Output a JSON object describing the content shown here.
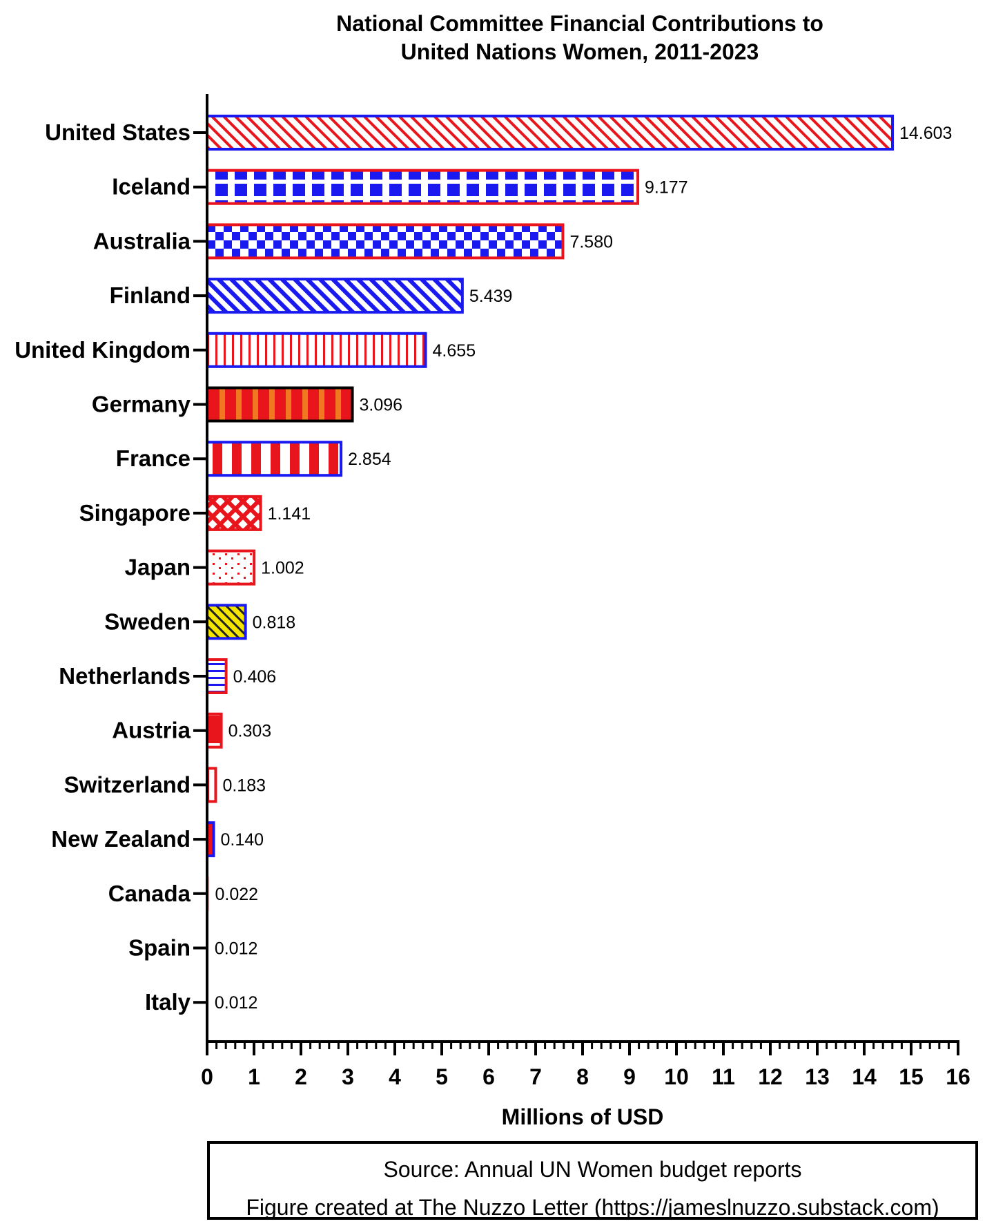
{
  "title_line1": "National Committee Financial Contributions to",
  "title_line2": "United Nations Women, 2011-2023",
  "source_line1": "Source: Annual UN Women budget reports",
  "source_line2": "Figure created at The Nuzzo Letter (https://jameslnuzzo.substack.com)",
  "chart_data": {
    "type": "bar",
    "orientation": "horizontal",
    "xlabel": "Millions of USD",
    "xlim": [
      0,
      16
    ],
    "xticks": [
      "0",
      "1",
      "2",
      "3",
      "4",
      "5",
      "6",
      "7",
      "8",
      "9",
      "10",
      "11",
      "12",
      "13",
      "14",
      "15",
      "16"
    ],
    "categories": [
      "United States",
      "Iceland",
      "Australia",
      "Finland",
      "United Kingdom",
      "Germany",
      "France",
      "Singapore",
      "Japan",
      "Sweden",
      "Netherlands",
      "Austria",
      "Switzerland",
      "New Zealand",
      "Canada",
      "Spain",
      "Italy"
    ],
    "values": [
      14.603,
      9.177,
      7.58,
      5.439,
      4.655,
      3.096,
      2.854,
      1.141,
      1.002,
      0.818,
      0.406,
      0.303,
      0.183,
      0.14,
      0.022,
      0.012,
      0.012
    ],
    "value_labels": [
      "14.603",
      "9.177",
      "7.580",
      "5.439",
      "4.655",
      "3.096",
      "2.854",
      "1.141",
      "1.002",
      "0.818",
      "0.406",
      "0.303",
      "0.183",
      "0.140",
      "0.022",
      "0.012",
      "0.012"
    ],
    "bar_styles": [
      {
        "pattern": "diagonal-stripes",
        "fill": "#e8161c",
        "border": "#1a1af0"
      },
      {
        "pattern": "square-rows",
        "fill": "#1a1af0",
        "border": "#e8161c"
      },
      {
        "pattern": "checker",
        "fill": "#1a1af0",
        "border": "#e8161c"
      },
      {
        "pattern": "diagonal-stripes",
        "fill": "#1a1af0",
        "border": "#1a1af0"
      },
      {
        "pattern": "vertical-stripes",
        "fill": "#e8161c",
        "border": "#1a1af0"
      },
      {
        "pattern": "vertical-stripes-on-color",
        "fill": "#e8161c",
        "accent": "#f07820",
        "border": "#000000"
      },
      {
        "pattern": "wide-vertical-stripes",
        "fill": "#e8161c",
        "border": "#1a1af0"
      },
      {
        "pattern": "crosshatch",
        "fill": "#e8161c",
        "border": "#e8161c"
      },
      {
        "pattern": "dots",
        "fill": "#e8161c",
        "border": "#e8161c"
      },
      {
        "pattern": "diagonal-stripes-on-color",
        "fill": "#222222",
        "accent": "#f5e600",
        "border": "#1a1af0"
      },
      {
        "pattern": "horizontal-stripes",
        "fill": "#1a1af0",
        "border": "#e8161c"
      },
      {
        "pattern": "horizontal-band",
        "fill": "#e8161c",
        "border": "#e8161c"
      },
      {
        "pattern": "vertical-stripes",
        "fill": "#e8161c",
        "border": "#e8161c"
      },
      {
        "pattern": "solid",
        "fill": "#e8161c",
        "border": "#1a1af0"
      },
      {
        "pattern": "solid",
        "fill": "#e8161c",
        "border": "#e8161c"
      },
      {
        "pattern": "solid",
        "fill": "#e8161c",
        "border": "#e8161c"
      },
      {
        "pattern": "solid",
        "fill": "#e8161c",
        "border": "#e8161c"
      }
    ]
  }
}
